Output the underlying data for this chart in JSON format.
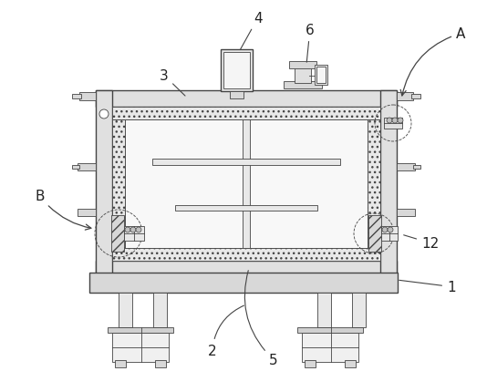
{
  "bg_color": "#ffffff",
  "lc": "#444444",
  "lc_thin": "#555555",
  "fc_gray": "#d8d8d8",
  "fc_light": "#f0f0f0",
  "fc_mid": "#cccccc",
  "figsize": [
    5.34,
    4.31
  ],
  "dpi": 100
}
